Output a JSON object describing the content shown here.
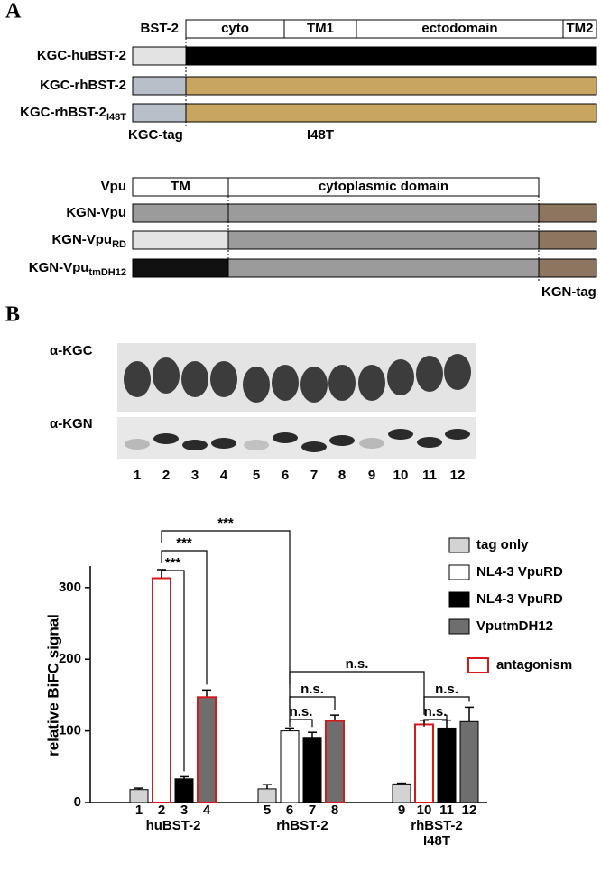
{
  "panel_a": {
    "label": "A",
    "bst2": {
      "label": "BST-2",
      "domains": [
        "cyto",
        "TM1",
        "ectodomain",
        "TM2"
      ],
      "rows": [
        {
          "text": "KGC-huBST-2"
        },
        {
          "text": "KGC-rhBST-2"
        },
        {
          "text": "KGC-rhBST-2",
          "sub": "I48T"
        }
      ],
      "tag": "KGC-tag",
      "mutation": "I48T"
    },
    "vpu": {
      "label": "Vpu",
      "domains": [
        "TM",
        "cytoplasmic domain"
      ],
      "rows": [
        {
          "text": "KGN-Vpu"
        },
        {
          "text": "KGN-Vpu",
          "sub": "RD"
        },
        {
          "text": "KGN-Vpu",
          "sub": "tmDH12"
        }
      ],
      "tag": "KGN-tag"
    }
  },
  "panel_b": {
    "label": "B",
    "blots": [
      "α-KGC",
      "α-KGN"
    ],
    "lanes": [
      "1",
      "2",
      "3",
      "4",
      "5",
      "6",
      "7",
      "8",
      "9",
      "10",
      "11",
      "12"
    ]
  },
  "chart_data": {
    "type": "bar",
    "ylabel": "relative BiFC signal",
    "categories": [
      "huBST-2",
      "rhBST-2",
      "rhBST-2 I48T"
    ],
    "series": [
      {
        "name": "tag only",
        "color": "#d3d3d3",
        "values": [
          18,
          19,
          26
        ],
        "errors": [
          2,
          6,
          1
        ],
        "outlined": [
          false,
          false,
          false
        ],
        "lanes": [
          "1",
          "5",
          "9"
        ]
      },
      {
        "name": "NL4-3 VpuRD",
        "color": "#ffffff",
        "values": [
          313,
          100,
          109
        ],
        "errors": [
          12,
          4,
          6
        ],
        "outlined": [
          true,
          false,
          true
        ],
        "lanes": [
          "2",
          "6",
          "10"
        ]
      },
      {
        "name": "NL4-3 VpuRD",
        "color": "#000000",
        "values": [
          33,
          91,
          104
        ],
        "errors": [
          3,
          7,
          11
        ],
        "outlined": [
          false,
          false,
          false
        ],
        "lanes": [
          "3",
          "7",
          "11"
        ]
      },
      {
        "name": "VputmDH12",
        "color": "#6e6e6e",
        "values": [
          147,
          114,
          113
        ],
        "errors": [
          10,
          8,
          20
        ],
        "outlined": [
          true,
          true,
          false
        ],
        "lanes": [
          "4",
          "8",
          "12"
        ]
      }
    ],
    "ylim": [
      0,
      330
    ],
    "yticks": [
      0,
      100,
      200,
      300
    ],
    "annotations": [
      "***",
      "***",
      "***",
      "n.s.",
      "n.s.",
      "n.s.",
      "n.s.",
      "n.s."
    ],
    "outline_legend": {
      "label": "antagonism",
      "color": "#d7191c"
    },
    "legend": "top-right"
  }
}
